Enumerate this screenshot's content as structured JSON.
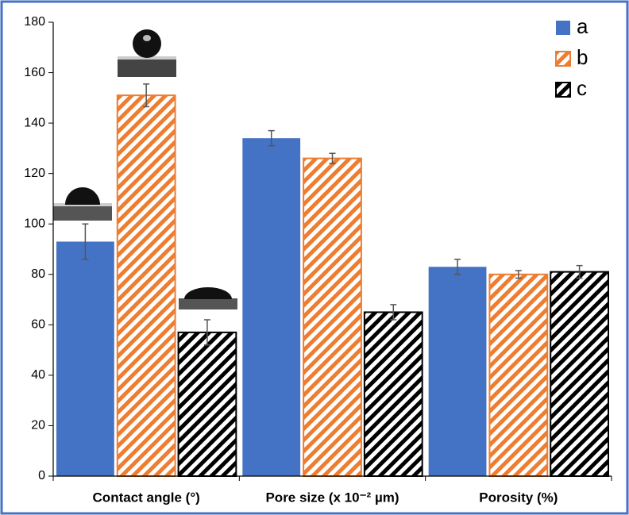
{
  "chart_data": {
    "type": "bar",
    "categories": [
      "Contact angle (°)",
      "Pore size (x 10⁻² µm)",
      "Porosity (%)"
    ],
    "series": [
      {
        "name": "a",
        "color": "#4472c4",
        "hatch": false,
        "values": [
          93,
          134,
          83
        ],
        "errors": [
          7,
          3,
          3
        ]
      },
      {
        "name": "b",
        "color": "#ed7d31",
        "hatch": true,
        "values": [
          151,
          126,
          80
        ],
        "errors": [
          4.5,
          2,
          1.5
        ]
      },
      {
        "name": "c",
        "color": "#000000",
        "hatch": true,
        "values": [
          57,
          65,
          81
        ],
        "errors": [
          5,
          3,
          2.5
        ]
      }
    ],
    "ylim": [
      0,
      180
    ],
    "yticks": [
      0,
      20,
      40,
      60,
      80,
      100,
      120,
      140,
      160,
      180
    ],
    "legend": "upper right"
  }
}
